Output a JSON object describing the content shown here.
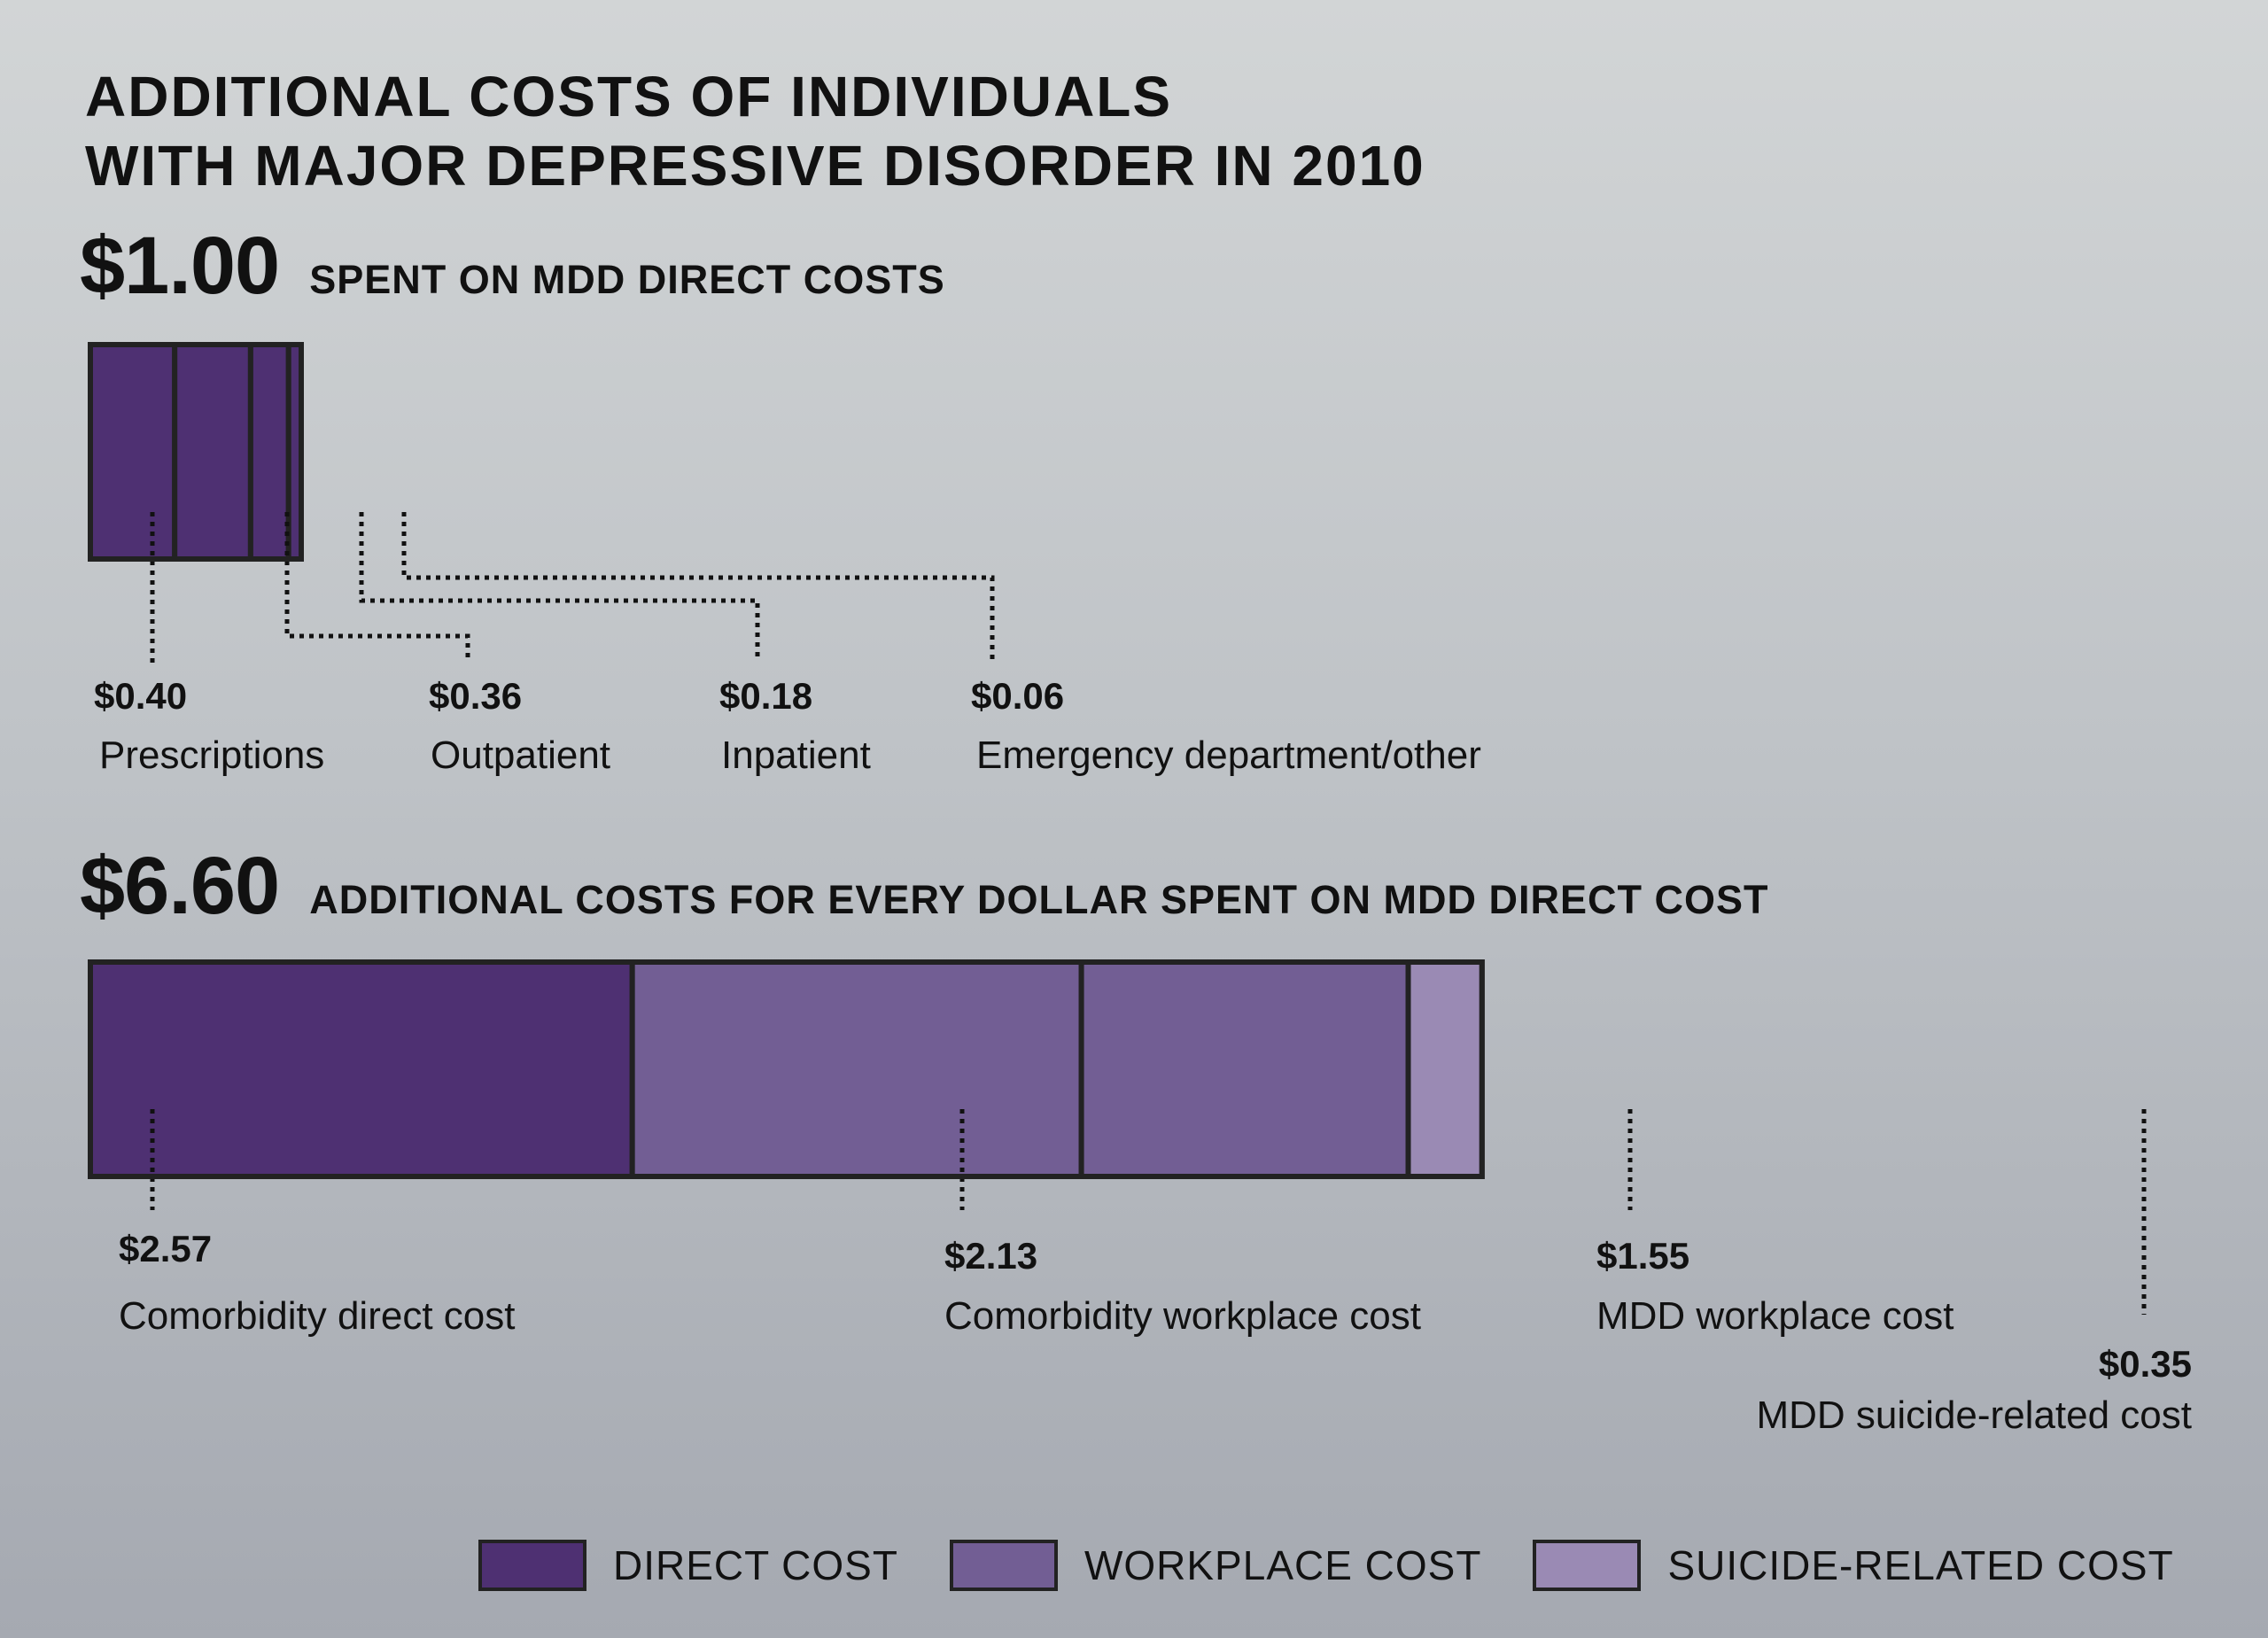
{
  "title": {
    "line1": "ADDITIONAL COSTS OF INDIVIDUALS",
    "line2": "WITH MAJOR DEPRESSIVE DISORDER IN 2010"
  },
  "direct_section": {
    "amount": "$1.00",
    "subtitle": "SPENT ON MDD DIRECT COSTS"
  },
  "additional_section": {
    "amount": "$6.60",
    "subtitle": "ADDITIONAL COSTS FOR EVERY DOLLAR SPENT ON MDD DIRECT COST"
  },
  "colors": {
    "direct": "#4e3072",
    "workplace": "#725e94",
    "suicide": "#9a8ab4",
    "outline": "#222222"
  },
  "legend": [
    {
      "label": "DIRECT COST",
      "category": "direct"
    },
    {
      "label": "WORKPLACE COST",
      "category": "workplace"
    },
    {
      "label": "SUICIDE-RELATED COST",
      "category": "suicide"
    }
  ],
  "chart_data": [
    {
      "type": "bar",
      "subtype": "stacked-horizontal",
      "title": "SPENT ON MDD DIRECT COSTS",
      "total": 1.0,
      "segments": [
        {
          "label": "Prescriptions",
          "value": 0.4,
          "value_label": "$0.40",
          "category": "direct"
        },
        {
          "label": "Outpatient",
          "value": 0.36,
          "value_label": "$0.36",
          "category": "direct"
        },
        {
          "label": "Inpatient",
          "value": 0.18,
          "value_label": "$0.18",
          "category": "direct"
        },
        {
          "label": "Emergency department/other",
          "value": 0.06,
          "value_label": "$0.06",
          "category": "direct"
        }
      ]
    },
    {
      "type": "bar",
      "subtype": "stacked-horizontal",
      "title": "ADDITIONAL COSTS FOR EVERY DOLLAR SPENT ON MDD DIRECT COST",
      "total": 6.6,
      "segments": [
        {
          "label": "Comorbidity direct cost",
          "value": 2.57,
          "value_label": "$2.57",
          "category": "direct"
        },
        {
          "label": "Comorbidity workplace cost",
          "value": 2.13,
          "value_label": "$2.13",
          "category": "workplace"
        },
        {
          "label": "MDD workplace cost",
          "value": 1.55,
          "value_label": "$1.55",
          "category": "workplace"
        },
        {
          "label": "MDD suicide-related cost",
          "value": 0.35,
          "value_label": "$0.35",
          "category": "suicide"
        }
      ]
    }
  ]
}
